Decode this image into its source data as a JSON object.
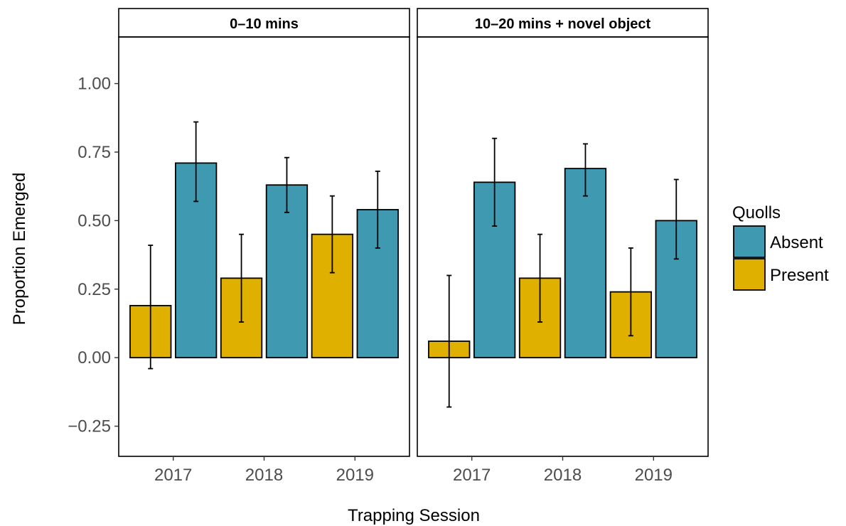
{
  "chart_data": {
    "type": "bar",
    "xlabel": "Trapping Session",
    "ylabel": "Proportion Emerged",
    "ylim": [
      -0.36,
      1.17
    ],
    "yticks": [
      -0.25,
      0.0,
      0.25,
      0.5,
      0.75,
      1.0
    ],
    "ytick_labels": [
      "−0.25",
      "0.00",
      "0.25",
      "0.50",
      "0.75",
      "1.00"
    ],
    "categories": [
      "2017",
      "2018",
      "2019"
    ],
    "grid": false,
    "legend": {
      "title": "Quolls",
      "placement": "right",
      "entries": [
        {
          "name": "Absent",
          "color": "#3e99b1"
        },
        {
          "name": "Present",
          "color": "#e0b000"
        }
      ]
    },
    "panels": [
      {
        "title": "0–10 mins",
        "series": [
          {
            "name": "Present",
            "color": "#e0b000",
            "values": [
              0.19,
              0.29,
              0.45
            ],
            "err_low": [
              -0.04,
              0.13,
              0.31
            ],
            "err_high": [
              0.41,
              0.45,
              0.59
            ]
          },
          {
            "name": "Absent",
            "color": "#3e99b1",
            "values": [
              0.71,
              0.63,
              0.54
            ],
            "err_low": [
              0.57,
              0.53,
              0.4
            ],
            "err_high": [
              0.86,
              0.73,
              0.68
            ]
          }
        ]
      },
      {
        "title": "10–20 mins + novel object",
        "series": [
          {
            "name": "Present",
            "color": "#e0b000",
            "values": [
              0.06,
              0.29,
              0.24
            ],
            "err_low": [
              -0.18,
              0.13,
              0.08
            ],
            "err_high": [
              0.3,
              0.45,
              0.4
            ]
          },
          {
            "name": "Absent",
            "color": "#3e99b1",
            "values": [
              0.64,
              0.69,
              0.5
            ],
            "err_low": [
              0.48,
              0.59,
              0.36
            ],
            "err_high": [
              0.8,
              0.78,
              0.65
            ]
          }
        ]
      }
    ]
  }
}
